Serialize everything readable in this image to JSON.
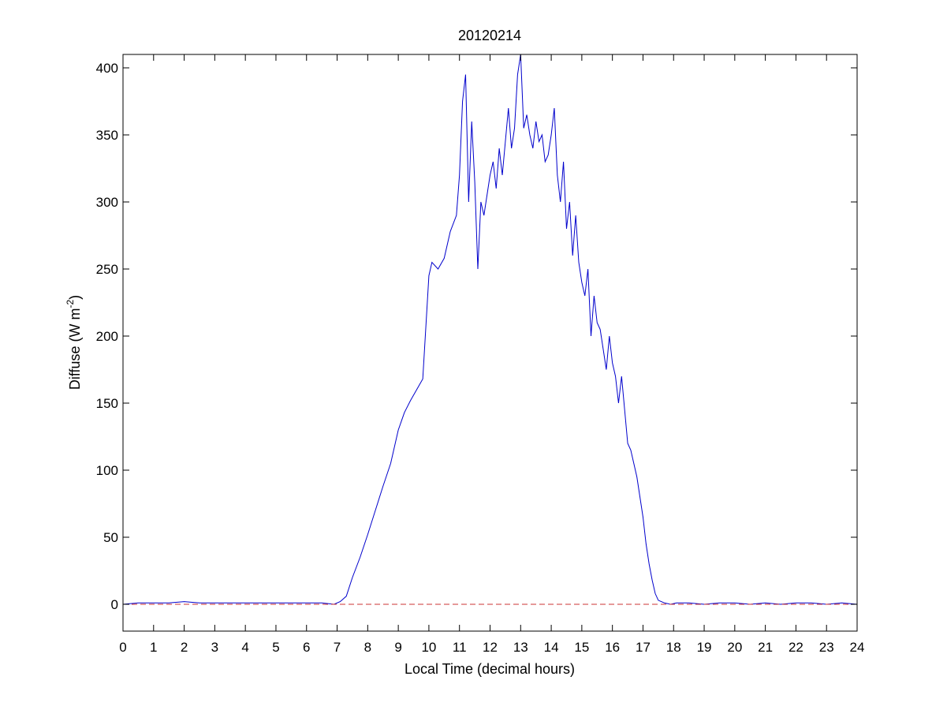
{
  "chart_data": {
    "type": "line",
    "title": "20120214",
    "xlabel": "Local Time (decimal hours)",
    "ylabel_main": "Diffuse (W m",
    "ylabel_sup": "-2",
    "ylabel_end": ")",
    "xlim": [
      0,
      24
    ],
    "ylim": [
      -20,
      410
    ],
    "xticks": [
      0,
      1,
      2,
      3,
      4,
      5,
      6,
      7,
      8,
      9,
      10,
      11,
      12,
      13,
      14,
      15,
      16,
      17,
      18,
      19,
      20,
      21,
      22,
      23,
      24
    ],
    "yticks": [
      0,
      50,
      100,
      150,
      200,
      250,
      300,
      350,
      400
    ],
    "grid": false,
    "legend": "none",
    "series": [
      {
        "color": "#0000cc",
        "style": "solid",
        "x": [
          0,
          0.5,
          1,
          1.5,
          2,
          2.5,
          3,
          3.5,
          4,
          4.5,
          5,
          5.5,
          6,
          6.5,
          6.9,
          7.1,
          7.3,
          7.5,
          7.75,
          8,
          8.25,
          8.5,
          8.75,
          9,
          9.2,
          9.4,
          9.6,
          9.8,
          10,
          10.1,
          10.3,
          10.5,
          10.7,
          10.9,
          11,
          11.1,
          11.2,
          11.3,
          11.4,
          11.5,
          11.6,
          11.7,
          11.8,
          11.9,
          12,
          12.1,
          12.2,
          12.3,
          12.4,
          12.5,
          12.6,
          12.7,
          12.8,
          12.9,
          13,
          13.1,
          13.2,
          13.3,
          13.4,
          13.5,
          13.6,
          13.7,
          13.8,
          13.9,
          14,
          14.1,
          14.2,
          14.3,
          14.4,
          14.5,
          14.6,
          14.7,
          14.8,
          14.9,
          15,
          15.1,
          15.2,
          15.3,
          15.4,
          15.5,
          15.6,
          15.7,
          15.8,
          15.9,
          16,
          16.1,
          16.2,
          16.3,
          16.4,
          16.5,
          16.6,
          16.7,
          16.8,
          16.9,
          17,
          17.1,
          17.2,
          17.3,
          17.4,
          17.5,
          17.7,
          17.9,
          18.1,
          18.5,
          19,
          19.5,
          20,
          20.5,
          21,
          21.5,
          22,
          22.5,
          23,
          23.5,
          24
        ],
        "y": [
          0,
          1,
          1,
          1,
          2,
          1,
          1,
          1,
          1,
          1,
          1,
          1,
          1,
          1,
          0,
          2,
          6,
          20,
          35,
          52,
          70,
          88,
          105,
          130,
          143,
          152,
          160,
          168,
          245,
          255,
          250,
          258,
          278,
          290,
          320,
          375,
          395,
          300,
          360,
          315,
          250,
          300,
          290,
          305,
          320,
          330,
          310,
          340,
          320,
          345,
          370,
          340,
          355,
          395,
          410,
          355,
          365,
          350,
          340,
          360,
          345,
          350,
          330,
          335,
          350,
          370,
          320,
          300,
          330,
          280,
          300,
          260,
          290,
          255,
          240,
          230,
          250,
          200,
          230,
          210,
          205,
          190,
          175,
          200,
          180,
          170,
          150,
          170,
          145,
          120,
          115,
          105,
          95,
          80,
          65,
          45,
          30,
          18,
          8,
          3,
          1,
          0,
          1,
          1,
          0,
          1,
          1,
          0,
          1,
          0,
          1,
          1,
          0,
          1,
          0
        ]
      },
      {
        "color": "#cc3333",
        "style": "dashed",
        "x": [
          0,
          24
        ],
        "y": [
          0,
          0
        ]
      }
    ]
  }
}
